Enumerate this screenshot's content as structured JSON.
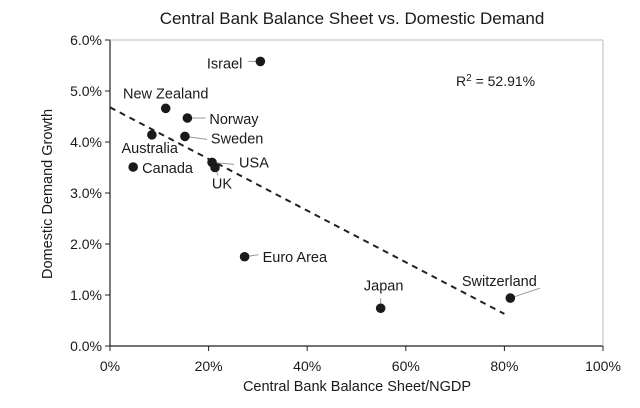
{
  "chart_data": {
    "type": "scatter",
    "title": "Central Bank Balance Sheet vs. Domestic Demand",
    "xlabel": "Central Bank Balance Sheet/NGDP",
    "ylabel": "Domestic Demand Growth",
    "xlim": [
      0,
      1.0
    ],
    "ylim": [
      0,
      0.06
    ],
    "x_ticks": [
      0,
      0.2,
      0.4,
      0.6,
      0.8,
      1.0
    ],
    "x_tick_labels": [
      "0%",
      "20%",
      "40%",
      "60%",
      "80%",
      "100%"
    ],
    "y_ticks": [
      0,
      0.01,
      0.02,
      0.03,
      0.04,
      0.05,
      0.06
    ],
    "y_tick_labels": [
      "0.0%",
      "1.0%",
      "2.0%",
      "3.0%",
      "4.0%",
      "5.0%",
      "6.0%"
    ],
    "grid": false,
    "annotation": {
      "r2_prefix": "R",
      "r2_sup": "2",
      "r2_value": " = 52.91%"
    },
    "points": [
      {
        "name": "Israel",
        "x": 0.305,
        "y": 0.0558
      },
      {
        "name": "New Zealand",
        "x": 0.113,
        "y": 0.0466
      },
      {
        "name": "Norway",
        "x": 0.157,
        "y": 0.0447
      },
      {
        "name": "Australia",
        "x": 0.085,
        "y": 0.0414
      },
      {
        "name": "Sweden",
        "x": 0.152,
        "y": 0.0411
      },
      {
        "name": "Canada",
        "x": 0.047,
        "y": 0.0351
      },
      {
        "name": "USA",
        "x": 0.207,
        "y": 0.036
      },
      {
        "name": "UK",
        "x": 0.213,
        "y": 0.035
      },
      {
        "name": "Euro Area",
        "x": 0.273,
        "y": 0.0175
      },
      {
        "name": "Japan",
        "x": 0.549,
        "y": 0.0074
      },
      {
        "name": "Switzerland",
        "x": 0.812,
        "y": 0.0094
      }
    ],
    "trendline": {
      "x": [
        0,
        0.8
      ],
      "y": [
        0.0468,
        0.0063
      ],
      "style": "dashed"
    }
  }
}
